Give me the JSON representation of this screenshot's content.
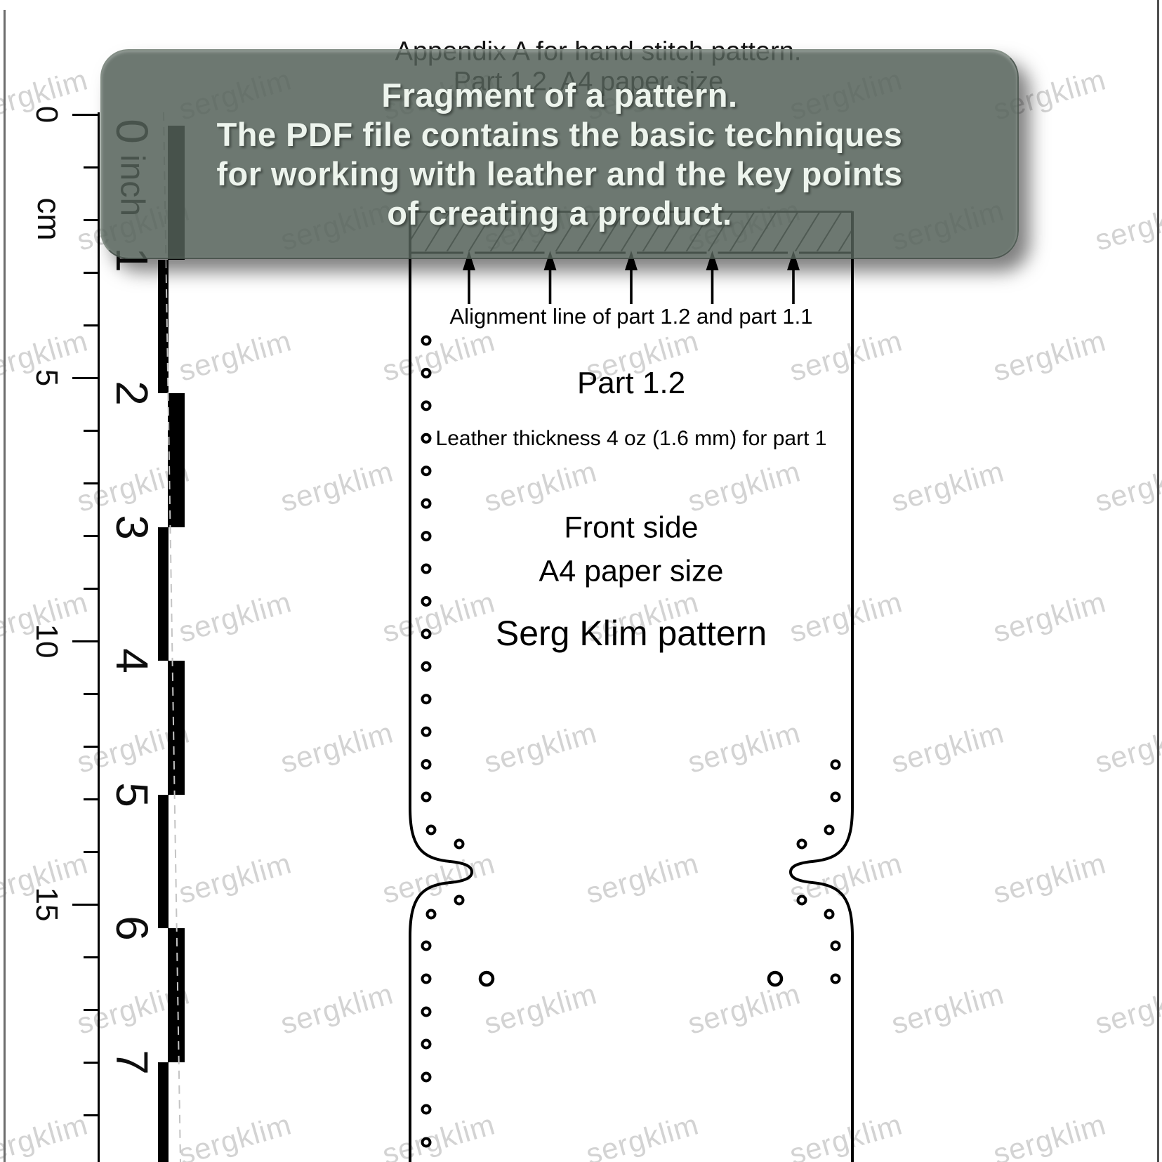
{
  "page": {
    "appendix_line1": "Appendix A for hand stitch pattern.",
    "appendix_line2": "Part 1.2. A4 paper size"
  },
  "banner": {
    "line1": "Fragment of a pattern.",
    "line2": "The PDF file contains the basic techniques",
    "line3": "for working with leather and the key points",
    "line4": "of creating a product."
  },
  "ruler": {
    "cm_unit": "cm",
    "inch_unit": "inch",
    "cm_numbers": [
      "0",
      "5",
      "10",
      "15"
    ],
    "inch_numbers": [
      "0",
      "1",
      "2",
      "3",
      "4",
      "5",
      "6",
      "7"
    ]
  },
  "pattern": {
    "alignment_note": "Alignment line of part 1.2 and part 1.1",
    "part_label": "Part 1.2",
    "thickness_note": "Leather thickness 4 oz (1.6 mm) for part 1",
    "side_label": "Front side",
    "paper_label": "A4 paper size",
    "brand_label": "Serg Klim pattern"
  },
  "watermark": {
    "text": "sergklim"
  },
  "colors": {
    "banner_bg": "rgba(84,96,88,0.85)",
    "banner_text": "#edf4ed",
    "watermark": "#d3d3d3",
    "outline": "#000000"
  }
}
